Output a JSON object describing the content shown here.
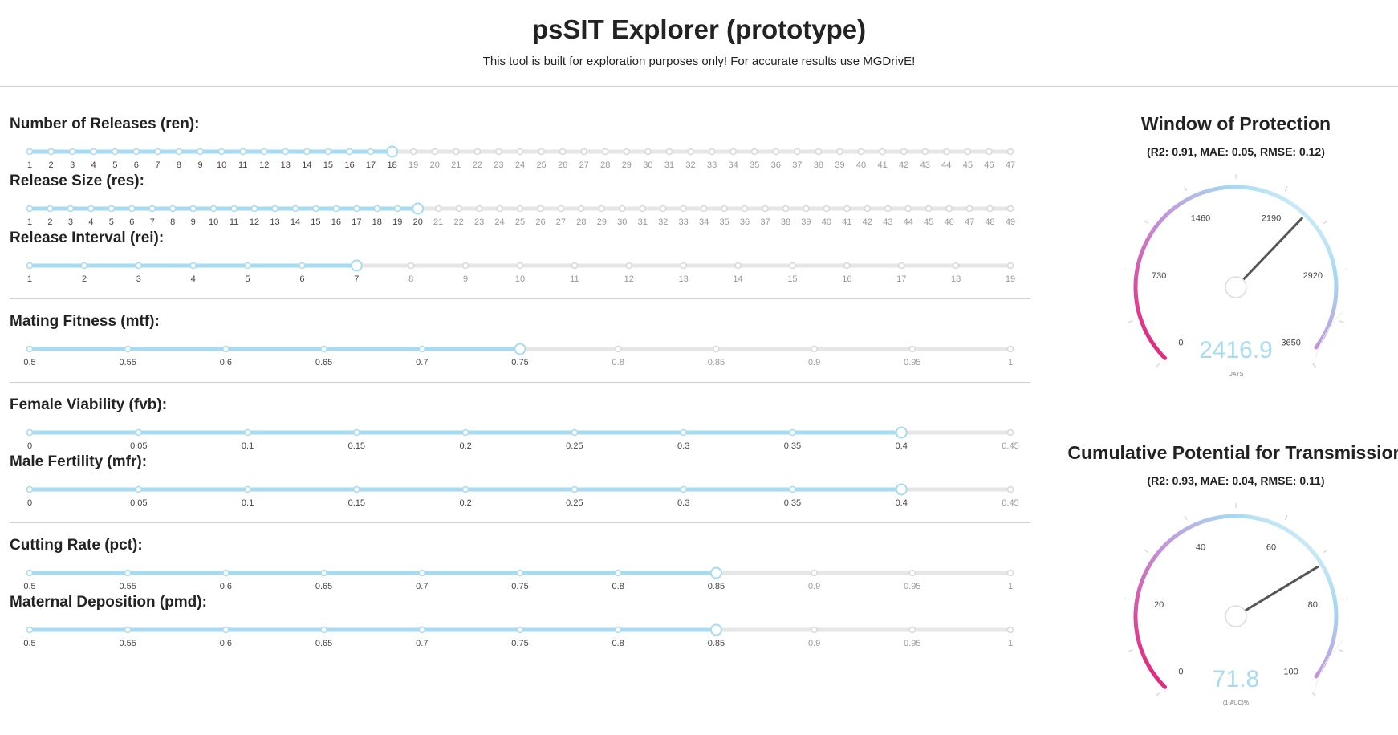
{
  "header": {
    "title": "psSIT Explorer (prototype)",
    "subtitle": "This tool is built for exploration purposes only! For accurate results use MGDrivE!"
  },
  "colors": {
    "accent": "#a6dbf2",
    "track": "#e6e6e6",
    "needle": "#555555",
    "gauge_value": "#a6dbf2",
    "gauge_low": "#e8186f",
    "gauge_mid": "#c48dd8",
    "gauge_high": "#a6dbf2"
  },
  "sliders": [
    {
      "label": "Number of Releases (ren):",
      "ticks": [
        "1",
        "2",
        "3",
        "4",
        "5",
        "6",
        "7",
        "8",
        "9",
        "10",
        "11",
        "12",
        "13",
        "14",
        "15",
        "16",
        "17",
        "18",
        "19",
        "20",
        "21",
        "22",
        "23",
        "24",
        "25",
        "26",
        "27",
        "28",
        "29",
        "30",
        "31",
        "32",
        "33",
        "34",
        "35",
        "36",
        "37",
        "38",
        "39",
        "40",
        "41",
        "42",
        "43",
        "44",
        "45",
        "46",
        "47"
      ],
      "selected": "18"
    },
    {
      "label": "Release Size (res):",
      "ticks": [
        "1",
        "2",
        "3",
        "4",
        "5",
        "6",
        "7",
        "8",
        "9",
        "10",
        "11",
        "12",
        "13",
        "14",
        "15",
        "16",
        "17",
        "18",
        "19",
        "20",
        "21",
        "22",
        "23",
        "24",
        "25",
        "26",
        "27",
        "28",
        "29",
        "30",
        "31",
        "32",
        "33",
        "34",
        "35",
        "36",
        "37",
        "38",
        "39",
        "40",
        "41",
        "42",
        "43",
        "44",
        "45",
        "46",
        "47",
        "48",
        "49"
      ],
      "selected": "20"
    },
    {
      "label": "Release Interval (rei):",
      "ticks": [
        "1",
        "2",
        "3",
        "4",
        "5",
        "6",
        "7",
        "8",
        "9",
        "10",
        "11",
        "12",
        "13",
        "14",
        "15",
        "16",
        "17",
        "18",
        "19"
      ],
      "selected": "7"
    },
    {
      "label": "Mating Fitness (mtf):",
      "ticks": [
        "0.5",
        "0.55",
        "0.6",
        "0.65",
        "0.7",
        "0.75",
        "0.8",
        "0.85",
        "0.9",
        "0.95",
        "1"
      ],
      "selected": "0.75"
    },
    {
      "label": "Female Viability (fvb):",
      "ticks": [
        "0",
        "0.05",
        "0.1",
        "0.15",
        "0.2",
        "0.25",
        "0.3",
        "0.35",
        "0.4",
        "0.45"
      ],
      "selected": "0.4"
    },
    {
      "label": "Male Fertility (mfr):",
      "ticks": [
        "0",
        "0.05",
        "0.1",
        "0.15",
        "0.2",
        "0.25",
        "0.3",
        "0.35",
        "0.4",
        "0.45"
      ],
      "selected": "0.4"
    },
    {
      "label": "Cutting Rate (pct):",
      "ticks": [
        "0.5",
        "0.55",
        "0.6",
        "0.65",
        "0.7",
        "0.75",
        "0.8",
        "0.85",
        "0.9",
        "0.95",
        "1"
      ],
      "selected": "0.85"
    },
    {
      "label": "Maternal Deposition (pmd):",
      "ticks": [
        "0.5",
        "0.55",
        "0.6",
        "0.65",
        "0.7",
        "0.75",
        "0.8",
        "0.85",
        "0.9",
        "0.95",
        "1"
      ],
      "selected": "0.85"
    }
  ],
  "gauges": [
    {
      "title": "Window of Protection",
      "metrics": "(R2: 0.91, MAE: 0.05, RMSE: 0.12)",
      "value": "2416.9",
      "value_number": 2416.9,
      "unit": "DAYS",
      "min": 0,
      "max": 3650,
      "scale_labels": [
        "0",
        "730",
        "1460",
        "2190",
        "2920",
        "3650"
      ]
    },
    {
      "title": "Cumulative Potential for Transmission",
      "metrics": "(R2: 0.93, MAE: 0.04, RMSE: 0.11)",
      "value": "71.8",
      "value_number": 71.8,
      "unit": "(1-AUC)%",
      "min": 0,
      "max": 100,
      "scale_labels": [
        "0",
        "20",
        "40",
        "60",
        "80",
        "100"
      ]
    }
  ]
}
